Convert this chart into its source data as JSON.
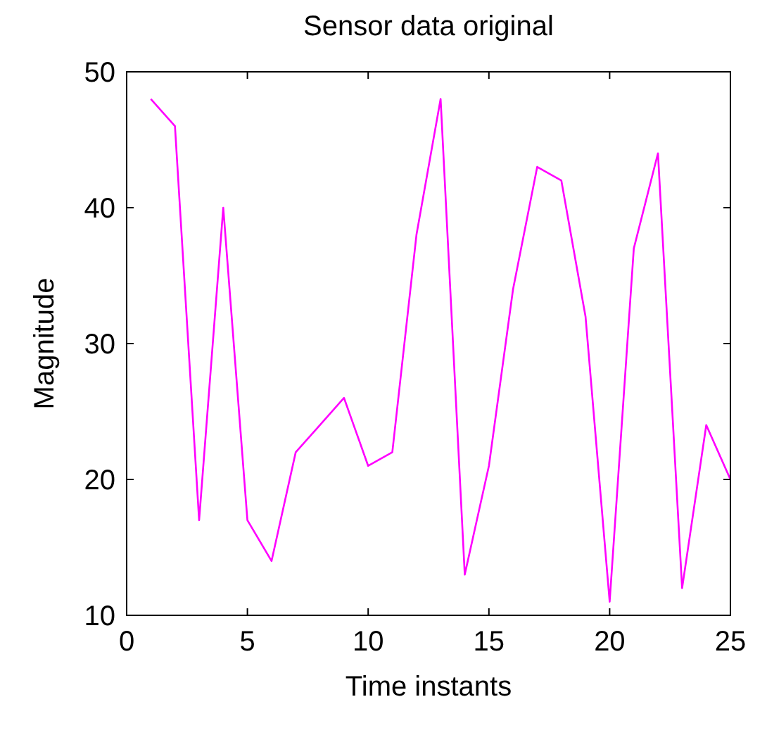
{
  "chart_data": {
    "type": "line",
    "title": "Sensor data original",
    "xlabel": "Time instants",
    "ylabel": "Magnitude",
    "x": [
      1,
      2,
      3,
      4,
      5,
      6,
      7,
      8,
      9,
      10,
      11,
      12,
      13,
      14,
      15,
      16,
      17,
      18,
      19,
      20,
      21,
      22,
      23,
      24,
      25
    ],
    "series": [
      {
        "color": "#ff00ff",
        "values": [
          48,
          46,
          17,
          40,
          17,
          14,
          22,
          24,
          26,
          21,
          22,
          38,
          48,
          13,
          21,
          34,
          43,
          42,
          32,
          11,
          37,
          44,
          12,
          24,
          20
        ]
      }
    ],
    "xlim": [
      0,
      25
    ],
    "xticks": [
      0,
      5,
      10,
      15,
      20,
      25
    ],
    "ylim": [
      10,
      50
    ],
    "yticks": [
      10,
      20,
      30,
      40,
      50
    ],
    "grid": false,
    "marker": "none",
    "line_style": "solid"
  }
}
